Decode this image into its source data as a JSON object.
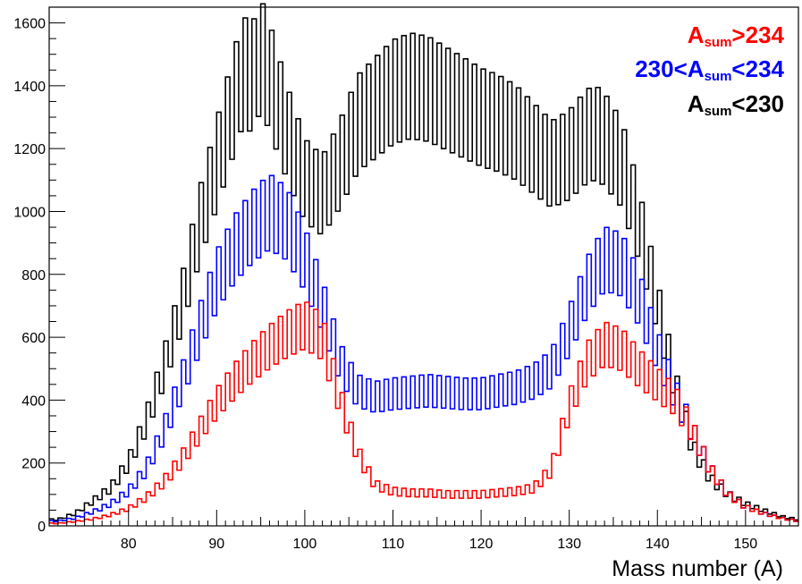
{
  "chart_data": {
    "type": "line",
    "title": "",
    "xlabel": "Mass number (A)",
    "ylabel": "",
    "xlim": [
      71,
      156
    ],
    "ylim": [
      0,
      1650
    ],
    "x_ticks": [
      "80",
      "90",
      "100",
      "110",
      "120",
      "130",
      "140",
      "150"
    ],
    "y_ticks": [
      "0",
      "200",
      "400",
      "600",
      "800",
      "1000",
      "1200",
      "1400",
      "1600"
    ],
    "legend_position": "top-right",
    "series": [
      {
        "name": "A_sum<230",
        "legend": {
          "base": "A",
          "sub": "sum",
          "rest": "<230"
        },
        "color": "#000000",
        "x": [
          72,
          74,
          76,
          78,
          80,
          82,
          84,
          86,
          88,
          90,
          92,
          93,
          94,
          95,
          96,
          98,
          100,
          102,
          104,
          106,
          108,
          110,
          112,
          114,
          116,
          118,
          120,
          122,
          124,
          126,
          128,
          130,
          132,
          133,
          134,
          136,
          138,
          140,
          142,
          144,
          146,
          148,
          150,
          152,
          154,
          156
        ],
        "y": [
          20,
          40,
          80,
          120,
          200,
          330,
          500,
          700,
          950,
          1150,
          1350,
          1450,
          1420,
          1500,
          1430,
          1250,
          1100,
          1050,
          1150,
          1280,
          1330,
          1380,
          1400,
          1390,
          1360,
          1330,
          1300,
          1280,
          1250,
          1200,
          1150,
          1180,
          1240,
          1250,
          1230,
          1150,
          950,
          700,
          450,
          250,
          150,
          100,
          70,
          50,
          30,
          20
        ]
      },
      {
        "name": "230<A_sum<234",
        "legend": {
          "pre": "230<",
          "base": "A",
          "sub": "sum",
          "rest": "<234"
        },
        "color": "#0000ff",
        "x": [
          72,
          74,
          76,
          78,
          80,
          82,
          84,
          86,
          88,
          90,
          92,
          94,
          96,
          98,
          100,
          102,
          104,
          106,
          108,
          110,
          112,
          114,
          116,
          118,
          120,
          122,
          124,
          126,
          128,
          130,
          132,
          134,
          136,
          138,
          140,
          142,
          144,
          146,
          148,
          150,
          152,
          154,
          156
        ],
        "y": [
          15,
          25,
          45,
          70,
          110,
          180,
          300,
          450,
          620,
          780,
          880,
          950,
          1000,
          960,
          850,
          700,
          520,
          430,
          410,
          420,
          425,
          430,
          425,
          420,
          420,
          430,
          440,
          460,
          500,
          620,
          760,
          850,
          830,
          720,
          560,
          420,
          300,
          180,
          100,
          60,
          40,
          25,
          15
        ]
      },
      {
        "name": "A_sum>234",
        "legend": {
          "base": "A",
          "sub": "sum",
          "rest": ">234"
        },
        "color": "#ff0000",
        "x": [
          72,
          74,
          76,
          78,
          80,
          82,
          84,
          86,
          88,
          90,
          92,
          94,
          96,
          98,
          100,
          102,
          104,
          106,
          108,
          110,
          112,
          114,
          116,
          118,
          120,
          122,
          124,
          126,
          128,
          130,
          132,
          134,
          136,
          138,
          140,
          142,
          144,
          146,
          148,
          150,
          152,
          154,
          156
        ],
        "y": [
          8,
          14,
          22,
          35,
          55,
          90,
          140,
          210,
          300,
          390,
          460,
          520,
          570,
          610,
          640,
          600,
          400,
          230,
          130,
          110,
          105,
          105,
          100,
          100,
          100,
          105,
          110,
          120,
          180,
          380,
          520,
          580,
          560,
          500,
          450,
          400,
          300,
          180,
          100,
          60,
          40,
          25,
          15
        ]
      }
    ]
  }
}
